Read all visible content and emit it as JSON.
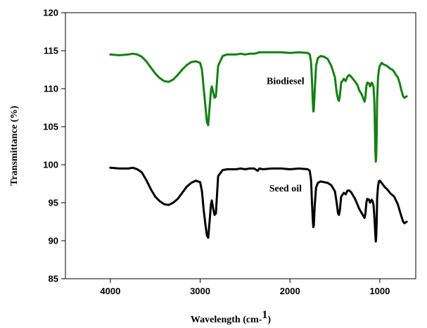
{
  "chart_data": {
    "type": "line",
    "title": "",
    "xlabel": "Wavelength (cm-1)",
    "xlabel_main": "Wavelength (cm-",
    "xlabel_sup": "1",
    "xlabel_close": ")",
    "ylabel": "Transmittance (%)",
    "xlim": [
      4500,
      600
    ],
    "x_reversed": true,
    "ylim": [
      85,
      120
    ],
    "xticks": [
      4000,
      3000,
      2000,
      1000
    ],
    "xtick_labels": [
      "4000",
      "3000",
      "2000",
      "1000"
    ],
    "yticks": [
      85,
      90,
      95,
      100,
      105,
      110,
      115,
      120
    ],
    "ytick_labels": [
      "85",
      "90",
      "95",
      "100",
      "105",
      "110",
      "115",
      "120"
    ],
    "grid": false,
    "legend": "none",
    "series": [
      {
        "name": "Biodiesel",
        "color": "#138013",
        "x": [
          4000,
          3900,
          3800,
          3750,
          3700,
          3650,
          3600,
          3550,
          3500,
          3450,
          3400,
          3350,
          3300,
          3250,
          3200,
          3150,
          3100,
          3050,
          3000,
          2980,
          2960,
          2940,
          2925,
          2910,
          2895,
          2880,
          2870,
          2855,
          2840,
          2825,
          2800,
          2750,
          2700,
          2650,
          2600,
          2550,
          2500,
          2450,
          2400,
          2360,
          2340,
          2300,
          2200,
          2100,
          2000,
          1900,
          1800,
          1780,
          1765,
          1755,
          1745,
          1740,
          1735,
          1725,
          1710,
          1690,
          1660,
          1620,
          1580,
          1540,
          1500,
          1480,
          1465,
          1455,
          1445,
          1430,
          1400,
          1380,
          1360,
          1340,
          1320,
          1300,
          1280,
          1250,
          1230,
          1200,
          1180,
          1170,
          1160,
          1150,
          1140,
          1120,
          1110,
          1100,
          1090,
          1080,
          1070,
          1060,
          1055,
          1050,
          1045,
          1040,
          1035,
          1030,
          1020,
          1010,
          1000,
          980,
          960,
          940,
          920,
          900,
          880,
          860,
          840,
          820,
          800,
          780,
          760,
          740,
          725,
          715,
          700
        ],
        "y": [
          114.5,
          114.4,
          114.5,
          114.6,
          114.5,
          114.2,
          113.6,
          112.8,
          112.0,
          111.4,
          111.0,
          110.9,
          111.2,
          111.8,
          112.5,
          113.1,
          113.5,
          113.6,
          113.4,
          112.5,
          110.0,
          107.5,
          105.6,
          105.2,
          107.5,
          109.8,
          110.3,
          109.5,
          108.8,
          109.0,
          113.0,
          114.3,
          114.5,
          114.5,
          114.5,
          114.6,
          114.5,
          114.6,
          114.6,
          114.7,
          114.8,
          114.8,
          114.8,
          114.8,
          114.7,
          114.8,
          114.7,
          114.5,
          113.5,
          111.0,
          108.0,
          107.0,
          107.2,
          109.5,
          113.0,
          114.0,
          114.3,
          114.2,
          113.9,
          113.0,
          111.5,
          109.5,
          108.6,
          108.4,
          109.0,
          110.8,
          111.3,
          111.0,
          111.6,
          111.8,
          111.6,
          111.3,
          111.0,
          110.5,
          109.8,
          109.2,
          108.6,
          108.3,
          108.9,
          110.3,
          110.8,
          110.7,
          110.3,
          110.5,
          110.8,
          110.6,
          110.2,
          108.0,
          105.0,
          102.0,
          100.4,
          101.0,
          104.0,
          108.5,
          111.5,
          112.5,
          113.0,
          113.4,
          113.2,
          113.1,
          113.0,
          112.8,
          112.6,
          112.5,
          112.2,
          111.8,
          111.5,
          110.8,
          109.8,
          109.0,
          108.8,
          108.9,
          109.0
        ]
      },
      {
        "name": "Seed oil",
        "color": "#000000",
        "x": [
          4000,
          3900,
          3800,
          3750,
          3700,
          3650,
          3600,
          3550,
          3500,
          3450,
          3400,
          3350,
          3300,
          3250,
          3200,
          3150,
          3100,
          3050,
          3000,
          2980,
          2960,
          2940,
          2925,
          2910,
          2895,
          2880,
          2870,
          2855,
          2840,
          2825,
          2800,
          2750,
          2700,
          2650,
          2600,
          2550,
          2500,
          2450,
          2400,
          2360,
          2340,
          2300,
          2200,
          2100,
          2000,
          1900,
          1800,
          1780,
          1765,
          1755,
          1745,
          1740,
          1735,
          1725,
          1710,
          1690,
          1660,
          1620,
          1580,
          1540,
          1500,
          1480,
          1465,
          1455,
          1445,
          1430,
          1400,
          1380,
          1360,
          1340,
          1320,
          1300,
          1280,
          1250,
          1230,
          1200,
          1180,
          1170,
          1160,
          1150,
          1140,
          1120,
          1110,
          1100,
          1090,
          1080,
          1070,
          1060,
          1055,
          1050,
          1045,
          1040,
          1035,
          1030,
          1020,
          1010,
          1000,
          980,
          960,
          940,
          920,
          900,
          880,
          860,
          840,
          820,
          800,
          780,
          760,
          740,
          725,
          715,
          700
        ],
        "y": [
          99.6,
          99.5,
          99.5,
          99.6,
          99.4,
          99.0,
          98.0,
          96.8,
          95.8,
          95.2,
          94.8,
          94.7,
          95.0,
          95.5,
          96.3,
          97.1,
          97.6,
          97.9,
          97.7,
          96.5,
          94.0,
          92.0,
          90.7,
          90.4,
          92.5,
          94.8,
          95.3,
          94.2,
          93.4,
          93.6,
          98.5,
          99.3,
          99.4,
          99.4,
          99.4,
          99.5,
          99.4,
          99.5,
          99.5,
          99.2,
          99.5,
          99.4,
          99.5,
          99.5,
          99.4,
          99.5,
          99.4,
          99.2,
          98.0,
          95.0,
          92.5,
          91.8,
          92.0,
          94.5,
          97.0,
          97.6,
          97.8,
          97.7,
          97.6,
          97.3,
          96.5,
          95.0,
          93.6,
          93.4,
          94.0,
          95.8,
          96.3,
          96.1,
          96.6,
          96.6,
          96.4,
          96.0,
          95.6,
          94.8,
          94.2,
          93.6,
          93.2,
          93.0,
          93.6,
          95.0,
          95.5,
          95.4,
          95.0,
          95.2,
          95.4,
          95.2,
          94.7,
          93.0,
          92.0,
          90.8,
          89.9,
          90.5,
          92.5,
          95.5,
          97.2,
          97.8,
          97.9,
          97.6,
          97.3,
          97.0,
          96.8,
          96.5,
          96.2,
          96.0,
          95.8,
          95.3,
          94.8,
          94.0,
          93.2,
          92.5,
          92.3,
          92.4,
          92.5
        ]
      }
    ],
    "annotations": [
      {
        "text": "Biodiesel",
        "x": 2050,
        "y": 110.6
      },
      {
        "text": "Seed oil",
        "x": 2050,
        "y": 96.5
      }
    ]
  }
}
